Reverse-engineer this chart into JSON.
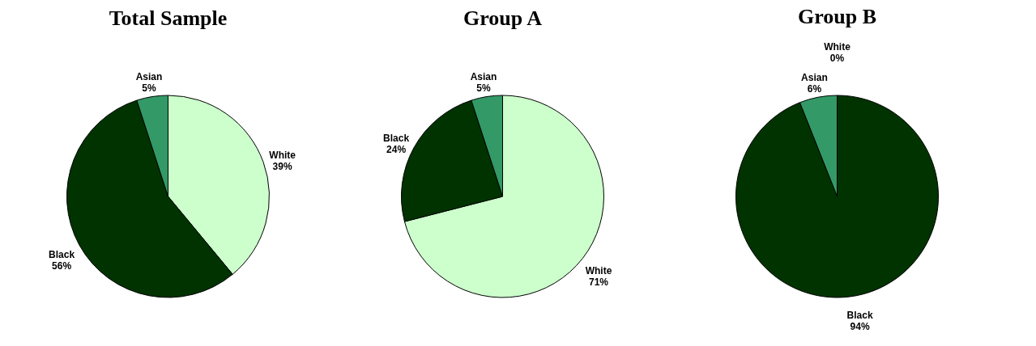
{
  "chart_data": [
    {
      "type": "pie",
      "title": "Total Sample",
      "categories": [
        "White",
        "Black",
        "Asian"
      ],
      "values": [
        39,
        56,
        5
      ],
      "value_labels": [
        "39%",
        "56%",
        "5%"
      ],
      "colors": [
        "#ccffcc",
        "#003300",
        "#339966"
      ],
      "legend": false
    },
    {
      "type": "pie",
      "title": "Group A",
      "categories": [
        "White",
        "Black",
        "Asian"
      ],
      "values": [
        71,
        24,
        5
      ],
      "value_labels": [
        "71%",
        "24%",
        "5%"
      ],
      "colors": [
        "#ccffcc",
        "#003300",
        "#339966"
      ],
      "legend": false
    },
    {
      "type": "pie",
      "title": "Group B",
      "categories": [
        "White",
        "Black",
        "Asian"
      ],
      "values": [
        0,
        94,
        6
      ],
      "value_labels": [
        "0%",
        "94%",
        "6%"
      ],
      "colors": [
        "#ccffcc",
        "#003300",
        "#339966"
      ],
      "legend": false
    }
  ]
}
